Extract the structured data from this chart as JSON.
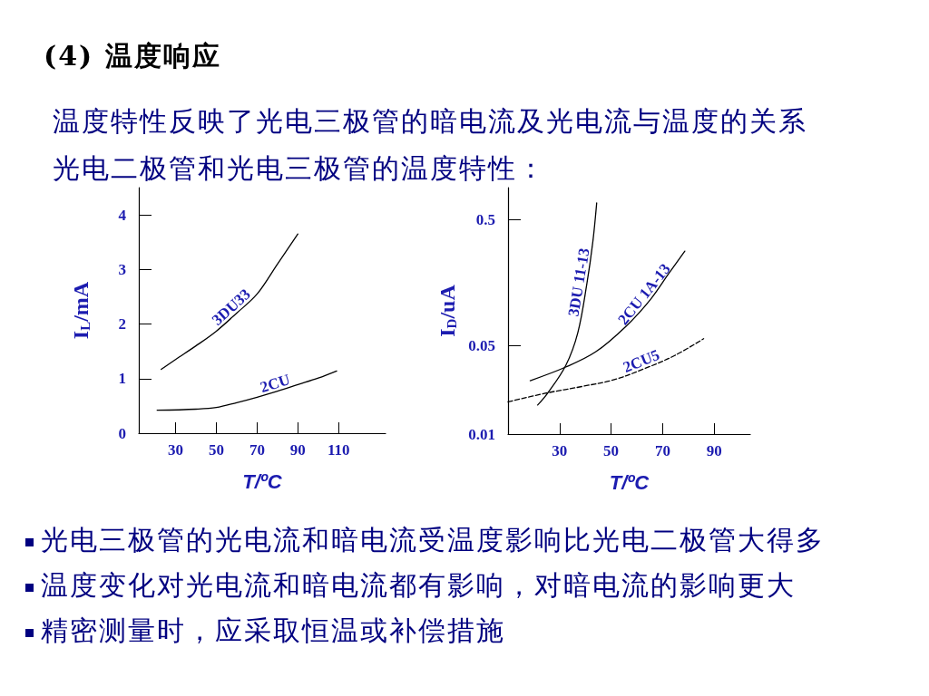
{
  "chart_data": [
    {
      "type": "line",
      "title": "(4) 温度响应",
      "subtitle": "温度特性反映了光电三极管的暗电流及光电流与温度的关系",
      "annotations": [
        "光电二极管和光电三极管的温度特性：",
        "光电三极管的光电流和暗电流受温度影响比光电二极管大得多",
        "温度变化对光电流和暗电流都有影响，对暗电流的影响更大",
        "精密测量时，应采取恒温或补偿措施"
      ],
      "xlabel": "T/ºC",
      "ylabel": "I$_{L}$/mA",
      "xlim": [
        12,
        133
      ],
      "xticks": [
        30,
        50,
        70,
        90,
        110
      ],
      "ylim": [
        0,
        4.5
      ],
      "yticks": [
        0,
        1,
        2,
        3,
        4
      ],
      "grid": false,
      "legend": false,
      "marker": "none",
      "series": [
        {
          "name": "3DU33",
          "color": "#000000",
          "line_style": "solid",
          "x": [
            23,
            30,
            40,
            50,
            60,
            70,
            80,
            90
          ],
          "values": [
            1.17,
            1.35,
            1.6,
            1.87,
            2.2,
            2.55,
            3.1,
            3.65
          ]
        },
        {
          "name": "2CU",
          "color": "#000000",
          "line_style": "solid",
          "x": [
            21,
            40,
            50,
            60,
            70,
            80,
            90,
            100,
            109
          ],
          "values": [
            0.42,
            0.44,
            0.47,
            0.56,
            0.66,
            0.77,
            0.89,
            1.01,
            1.14
          ]
        }
      ]
    },
    {
      "type": "line",
      "xlabel": "T/ºC",
      "ylabel": "I$_{D}$/uA",
      "log": "y",
      "xlim": [
        10,
        104
      ],
      "xticks": [
        30,
        50,
        70,
        90
      ],
      "ylim": [
        0.01,
        0.9
      ],
      "yticks": [
        0.01,
        0.05,
        0.5
      ],
      "grid": false,
      "legend": false,
      "marker": "none",
      "series": [
        {
          "name": "3DU 11-13",
          "color": "#000000",
          "line_style": "solid",
          "x": [
            21.5,
            25.3,
            32.4,
            37.1,
            40.6,
            42.9,
            44.4
          ],
          "values": [
            0.017,
            0.021,
            0.035,
            0.064,
            0.156,
            0.334,
            0.68
          ]
        },
        {
          "name": "2CU 1A-13",
          "color": "#000000",
          "line_style": "solid",
          "x": [
            18.6,
            32.4,
            44.1,
            55.9,
            65.3,
            72.4,
            78.6
          ],
          "values": [
            0.0265,
            0.034,
            0.045,
            0.072,
            0.117,
            0.188,
            0.282
          ]
        },
        {
          "name": "2CU5",
          "color": "#000000",
          "line_style": "dashed",
          "x": [
            10,
            24.1,
            39.4,
            51.2,
            62.9,
            74.7,
            85.9
          ],
          "values": [
            0.018,
            0.021,
            0.024,
            0.027,
            0.033,
            0.042,
            0.057
          ]
        }
      ]
    }
  ]
}
